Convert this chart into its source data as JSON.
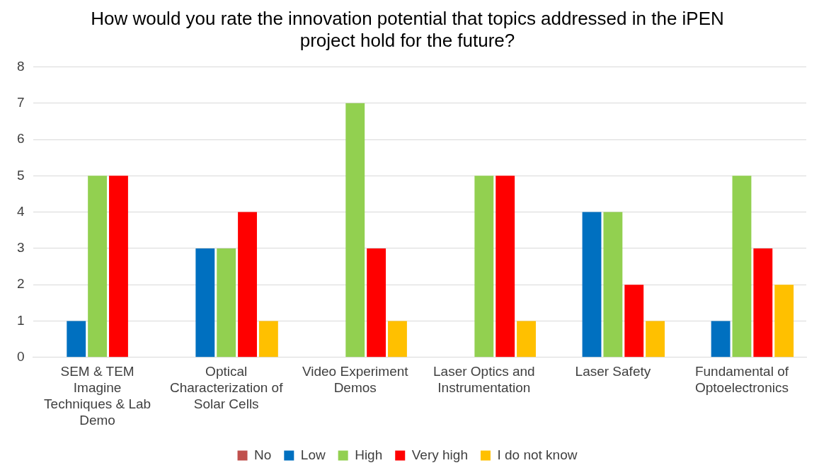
{
  "chart_data": {
    "type": "bar",
    "title": "How would you rate the innovation potential that topics addressed in the iPEN project hold for the future?",
    "categories": [
      "SEM & TEM Imagine Techniques & Lab Demo",
      "Optical Characterization of Solar Cells",
      "Video Experiment Demos",
      "Laser Optics and Instrumentation",
      "Laser Safety",
      "Fundamental of Optoelectronics"
    ],
    "series": [
      {
        "name": "No",
        "color": "#c0504d",
        "values": [
          0,
          0,
          0,
          0,
          0,
          0
        ]
      },
      {
        "name": "Low",
        "color": "#0070c0",
        "values": [
          1,
          3,
          0,
          0,
          4,
          1
        ]
      },
      {
        "name": "High",
        "color": "#92d050",
        "values": [
          5,
          3,
          7,
          5,
          4,
          5
        ]
      },
      {
        "name": "Very high",
        "color": "#ff0000",
        "values": [
          5,
          4,
          3,
          5,
          2,
          3
        ]
      },
      {
        "name": "I do not know",
        "color": "#ffc000",
        "values": [
          0,
          1,
          1,
          1,
          1,
          2
        ]
      }
    ],
    "ylim": [
      0,
      8
    ],
    "yticks": [
      0,
      1,
      2,
      3,
      4,
      5,
      6,
      7,
      8
    ],
    "grid": "y",
    "legend": "bottom"
  }
}
